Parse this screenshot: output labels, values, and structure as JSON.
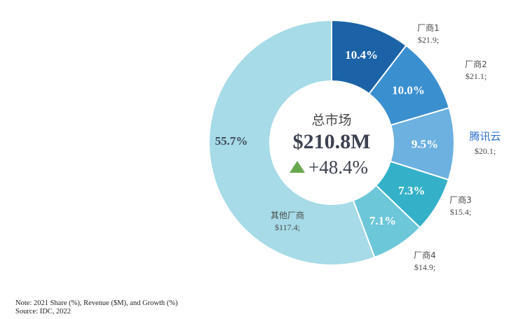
{
  "chart_data": {
    "type": "pie",
    "center": {
      "title": "总市场",
      "total": "$210.8M",
      "growth": "+48.4%",
      "growth_color": "#6aa84f"
    },
    "slices": [
      {
        "name": "厂商1",
        "share": 10.4,
        "share_label": "10.4%",
        "revenue_label": "$21.9;",
        "color": "#1b63a6",
        "highlight": false
      },
      {
        "name": "厂商2",
        "share": 10.0,
        "share_label": "10.0%",
        "revenue_label": "$21.1;",
        "color": "#3a8fcf",
        "highlight": false
      },
      {
        "name": "腾讯云",
        "share": 9.5,
        "share_label": "9.5%",
        "revenue_label": "$20.1;",
        "color": "#6cb1e0",
        "highlight": true
      },
      {
        "name": "厂商3",
        "share": 7.3,
        "share_label": "7.3%",
        "revenue_label": "$15.4;",
        "color": "#34b1c8",
        "highlight": false
      },
      {
        "name": "厂商4",
        "share": 7.1,
        "share_label": "7.1%",
        "revenue_label": "$14.9;",
        "color": "#6cc7d9",
        "highlight": false
      },
      {
        "name": "其他厂商",
        "share": 55.7,
        "share_label": "55.7%",
        "revenue_label": "$117.4;",
        "color": "#a6dbe7",
        "highlight": false
      }
    ],
    "label_color": "#ffffff",
    "other_label_color": "#3f4a5a",
    "highlight_color": "#2f6fd1"
  },
  "notes": {
    "line1": "Note: 2021 Share (%), Revenue ($M), and Growth (%)",
    "line2": "Source: IDC, 2022"
  }
}
